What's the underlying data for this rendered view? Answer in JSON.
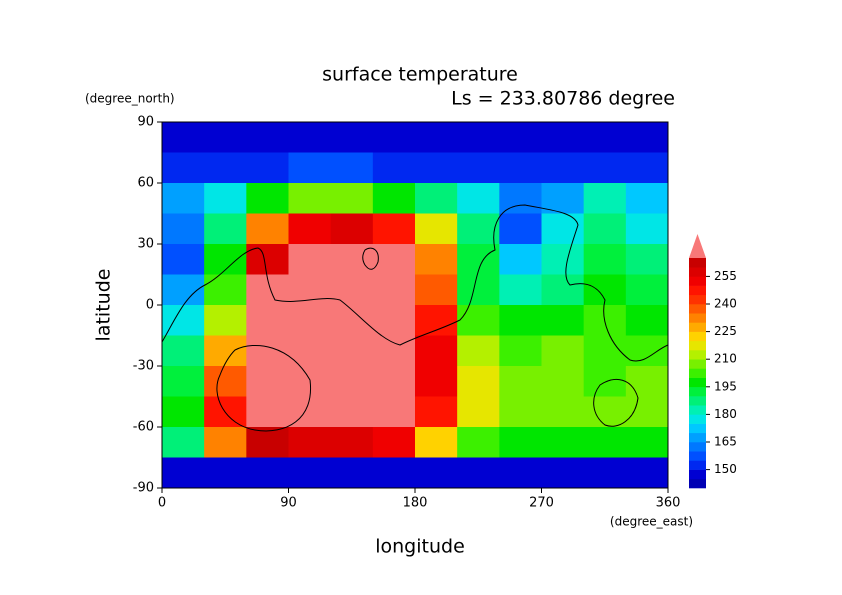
{
  "chart_data": {
    "type": "contour",
    "title": "surface temperature",
    "subtitle": "Ls = 233.80786 degree",
    "x_label": "longitude",
    "y_label": "latitude",
    "x_unit": "(degree_east)",
    "y_unit": "(degree_north)",
    "xlim": [
      0,
      360
    ],
    "ylim": [
      -90,
      90
    ],
    "xticks": [
      0,
      90,
      180,
      270,
      360
    ],
    "yticks": [
      -90,
      -60,
      -30,
      0,
      30,
      60,
      90
    ],
    "xbins": [
      0,
      30,
      60,
      90,
      120,
      150,
      180,
      210,
      240,
      270,
      300,
      330,
      360
    ],
    "ybins": [
      90,
      75,
      60,
      45,
      30,
      15,
      0,
      -15,
      -30,
      -45,
      -60,
      -75,
      -90
    ],
    "z": [
      [
        147,
        147,
        147,
        147,
        147,
        147,
        147,
        147,
        147,
        147,
        147,
        147
      ],
      [
        150,
        150,
        152,
        155,
        155,
        153,
        150,
        150,
        150,
        150,
        150,
        150
      ],
      [
        165,
        175,
        195,
        205,
        205,
        195,
        185,
        175,
        160,
        165,
        180,
        170
      ],
      [
        160,
        185,
        230,
        250,
        255,
        245,
        215,
        185,
        155,
        175,
        185,
        175
      ],
      [
        155,
        195,
        255,
        270,
        270,
        265,
        230,
        190,
        170,
        180,
        190,
        185
      ],
      [
        165,
        200,
        270,
        270,
        270,
        270,
        235,
        190,
        180,
        185,
        195,
        190
      ],
      [
        175,
        210,
        270,
        270,
        270,
        270,
        245,
        200,
        195,
        195,
        200,
        195
      ],
      [
        185,
        225,
        270,
        270,
        270,
        270,
        250,
        210,
        200,
        205,
        200,
        200
      ],
      [
        190,
        235,
        270,
        270,
        270,
        270,
        250,
        215,
        205,
        205,
        200,
        205
      ],
      [
        195,
        245,
        270,
        270,
        270,
        270,
        245,
        215,
        205,
        205,
        205,
        205
      ],
      [
        185,
        230,
        260,
        255,
        255,
        250,
        220,
        200,
        195,
        195,
        195,
        195
      ],
      [
        147,
        147,
        147,
        147,
        147,
        147,
        147,
        147,
        147,
        147,
        147,
        147
      ]
    ],
    "levels": [
      140,
      145,
      150,
      155,
      160,
      165,
      170,
      175,
      180,
      185,
      190,
      195,
      200,
      205,
      210,
      215,
      220,
      225,
      230,
      235,
      240,
      245,
      250,
      255,
      260,
      265
    ],
    "colors": [
      "#0000b4",
      "#0000d2",
      "#0028f0",
      "#0050ff",
      "#0078ff",
      "#00a0ff",
      "#00c8ff",
      "#00e6e6",
      "#00f0b4",
      "#00f078",
      "#00f03c",
      "#00e600",
      "#3cf000",
      "#78f000",
      "#b4f000",
      "#e6e600",
      "#ffd200",
      "#ffaa00",
      "#ff8200",
      "#ff5a00",
      "#ff3200",
      "#ff1400",
      "#f00000",
      "#dc0000",
      "#c80000"
    ],
    "extend_color": "#f87878",
    "colorbar_ticks": [
      150,
      165,
      180,
      195,
      210,
      225,
      240,
      255
    ]
  }
}
